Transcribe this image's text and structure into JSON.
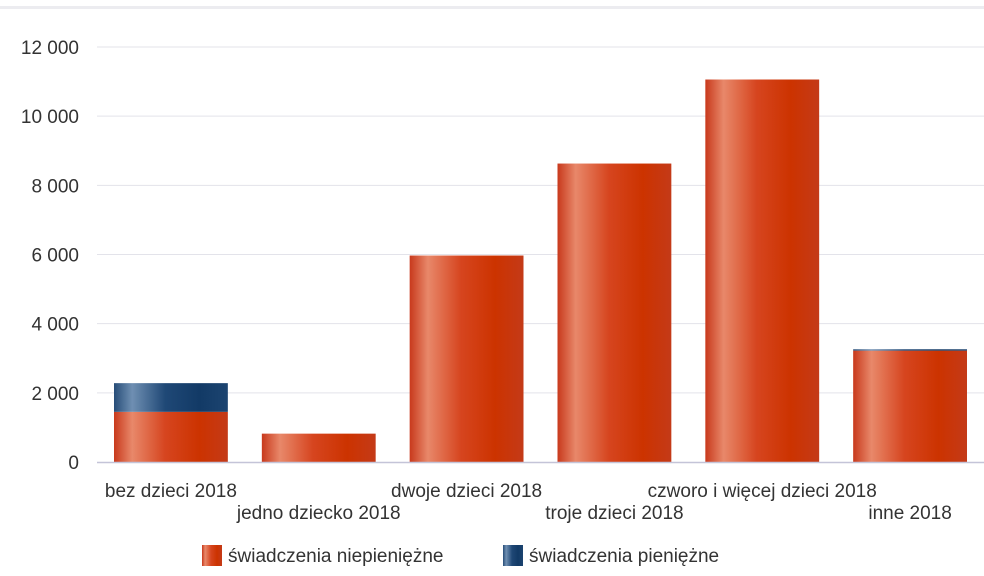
{
  "chart_data": {
    "type": "bar",
    "stacked": true,
    "categories": [
      "bez dzieci 2018",
      "jedno dziecko 2018",
      "dwoje dzieci 2018",
      "troje dzieci 2018",
      "czworo i więcej dzieci 2018",
      "inne 2018"
    ],
    "series": [
      {
        "name": "świadczenia niepieniężne",
        "color": "#d0391a",
        "values": [
          1450,
          820,
          5970,
          8630,
          11060,
          3220
        ]
      },
      {
        "name": "świadczenia pieniężne",
        "color": "#1f4e7f",
        "values": [
          830,
          0,
          0,
          0,
          0,
          40
        ]
      }
    ],
    "ylim": [
      0,
      12000
    ],
    "yticks": [
      "0",
      "2 000",
      "4 000",
      "6 000",
      "8 000",
      "10 000",
      "12 000"
    ],
    "ytick_values": [
      0,
      2000,
      4000,
      6000,
      8000,
      10000,
      12000
    ],
    "grid": true,
    "legend": "bottom"
  }
}
